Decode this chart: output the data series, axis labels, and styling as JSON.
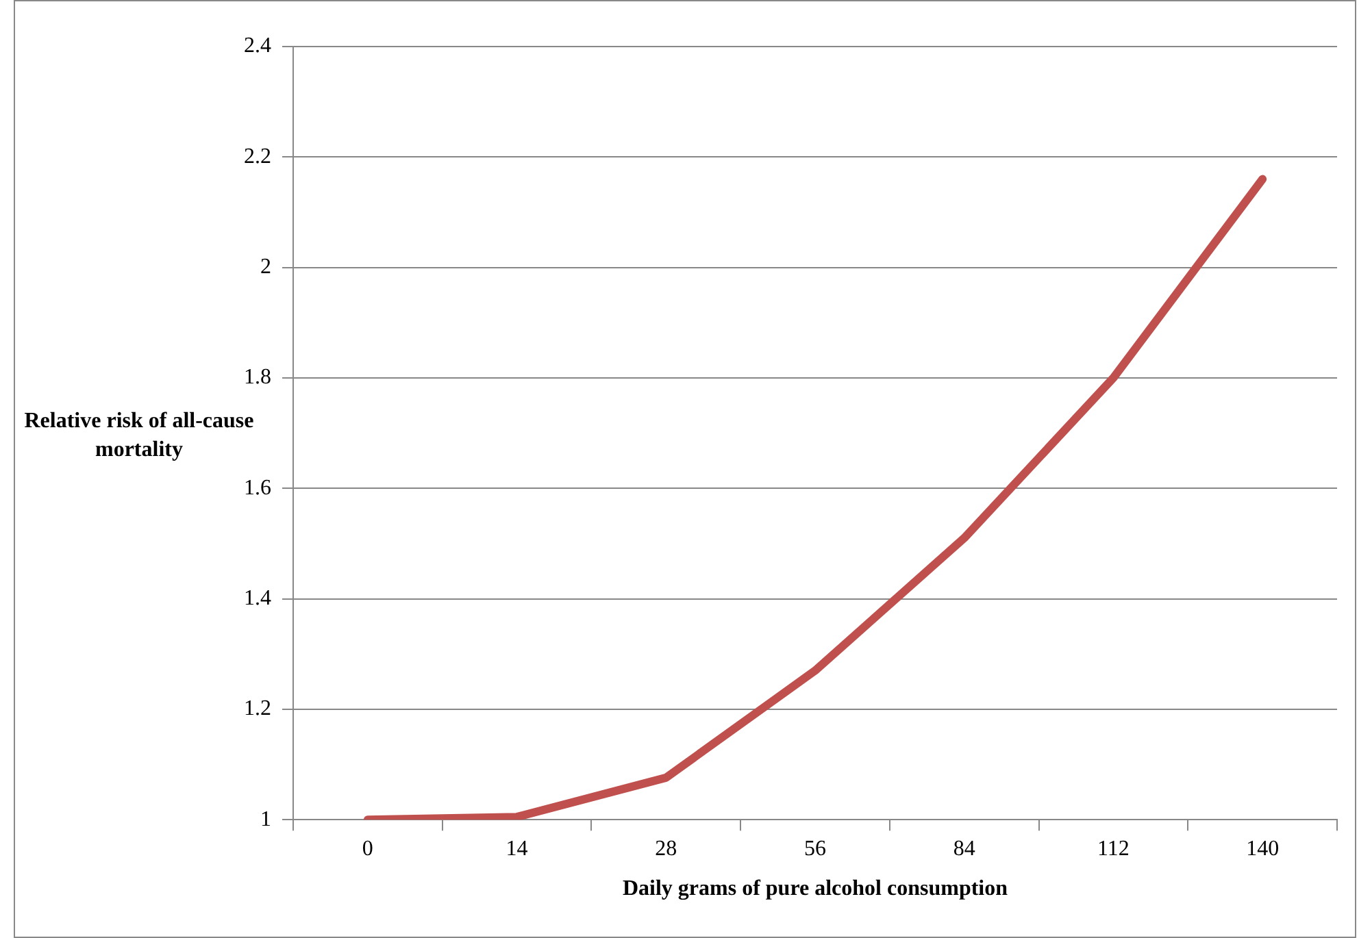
{
  "chart_data": {
    "type": "line",
    "xlabel": "Daily grams of pure alcohol consumption",
    "ylabel": "Relative risk of all-cause mortality",
    "categories": [
      "0",
      "14",
      "28",
      "56",
      "84",
      "112",
      "140"
    ],
    "series": [
      {
        "color": "#c0504d",
        "values": [
          1.0,
          1.005,
          1.076,
          1.27,
          1.51,
          1.8,
          2.16
        ]
      }
    ],
    "ylim": [
      1,
      2.4
    ],
    "yticks": [
      1,
      {
        "value": 1.2,
        "label": "1.2"
      },
      {
        "value": 1.4,
        "label": "1.4"
      },
      {
        "value": 1.6,
        "label": "1.6"
      },
      {
        "value": 1.8,
        "label": "1.8"
      },
      2,
      {
        "value": 2.2,
        "label": "2.2"
      },
      {
        "value": 2.4,
        "label": "2.4"
      }
    ],
    "grid": "y",
    "legend": false,
    "marker": "none",
    "line_style": "solid"
  }
}
